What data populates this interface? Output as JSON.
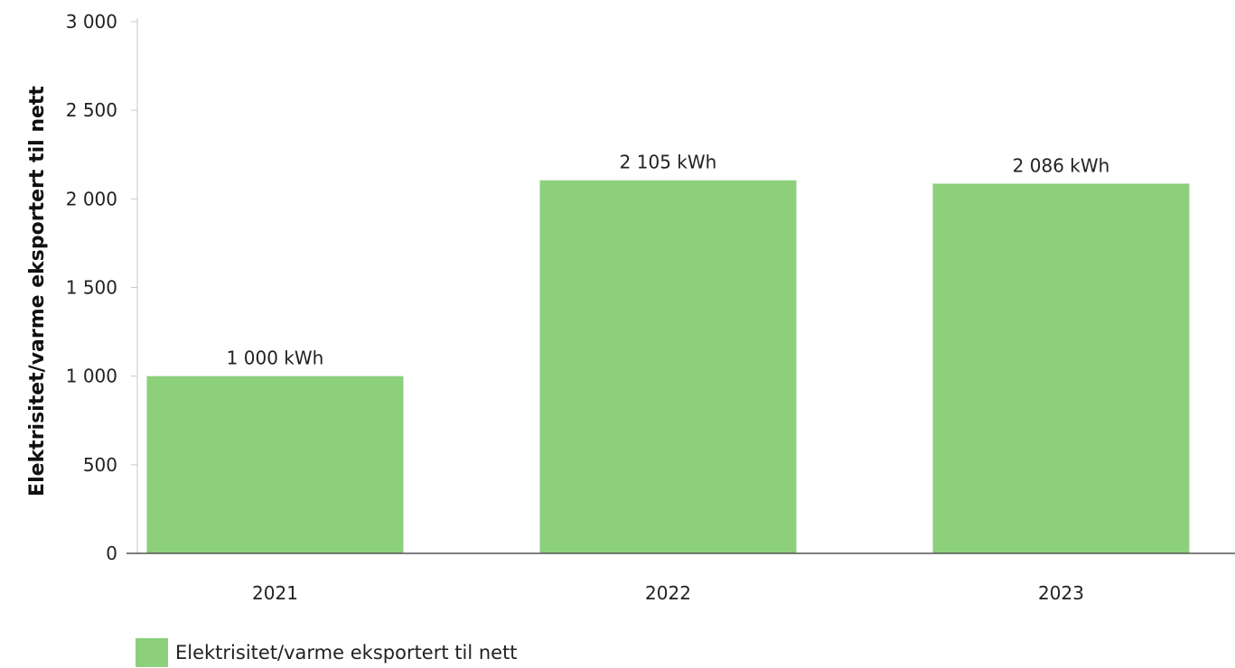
{
  "chart_data": {
    "type": "bar",
    "categories": [
      "2021",
      "2022",
      "2023"
    ],
    "series": [
      {
        "name": "Elektrisitet/varme eksportert til nett",
        "values": [
          1000,
          2105,
          2086
        ],
        "data_labels": [
          "1 000 kWh",
          "2 105 kWh",
          "2 086 kWh"
        ],
        "color": "#8cd07c"
      }
    ],
    "ylabel": "Elektrisitet/varme eksportert til nett",
    "xlabel": "",
    "ylim": [
      0,
      3000
    ],
    "yticks": [
      0,
      500,
      1000,
      1500,
      2000,
      2500,
      3000
    ],
    "ytick_labels": [
      "0",
      "500",
      "1 000",
      "1 500",
      "2 000",
      "2 500",
      "3 000"
    ],
    "grid": false,
    "legend_position": "bottom-left"
  }
}
